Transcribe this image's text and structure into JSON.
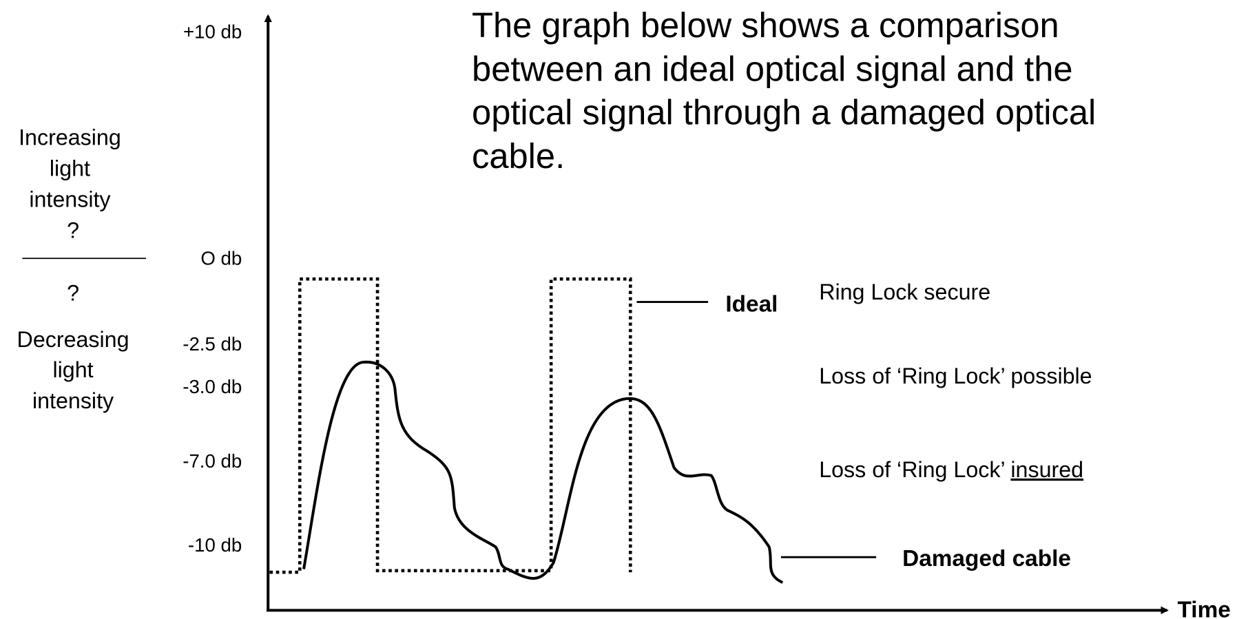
{
  "title_lines": [
    "The graph below shows a comparison",
    "between an ideal optical signal and the",
    "optical signal through a damaged optical",
    "cable."
  ],
  "y_axis_labels": [
    "+10 db",
    "O db",
    "-2.5 db",
    "-3.0 db",
    "-7.0 db",
    "-10 db"
  ],
  "upper_label": [
    "Increasing",
    "light",
    "intensity",
    "?"
  ],
  "lower_label": [
    "?",
    "Decreasing",
    "light",
    "intensity"
  ],
  "legend": {
    "ideal": "Ideal",
    "damaged": "Damaged cable"
  },
  "zones": {
    "secure": "Ring Lock secure",
    "possible": "Loss of ‘Ring Lock’ possible",
    "insured": {
      "text": "Loss of ‘Ring Lock’ ",
      "underlined": "insured"
    }
  },
  "x_axis_label": "Time"
}
